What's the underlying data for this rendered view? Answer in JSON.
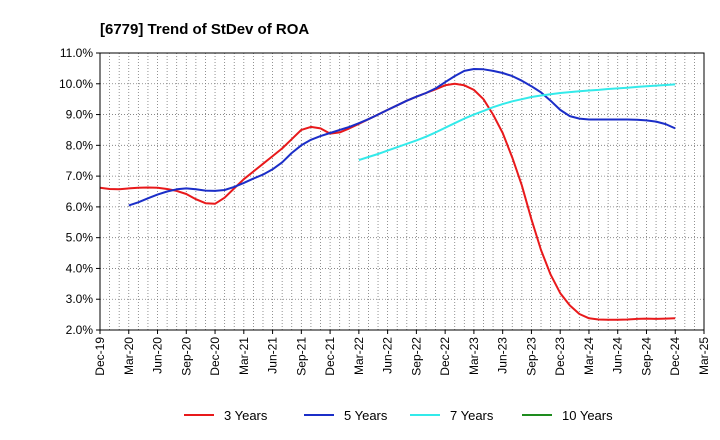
{
  "chart_data": {
    "type": "line",
    "title": "[6779]  Trend of StDev of ROA",
    "xlabel": "",
    "ylabel": "",
    "ylim": [
      2.0,
      11.0
    ],
    "y_ticks": [
      "2.0%",
      "3.0%",
      "4.0%",
      "5.0%",
      "6.0%",
      "7.0%",
      "8.0%",
      "9.0%",
      "10.0%",
      "11.0%"
    ],
    "x_ticks": [
      "Dec-19",
      "Mar-20",
      "Jun-20",
      "Sep-20",
      "Dec-20",
      "Mar-21",
      "Jun-21",
      "Sep-21",
      "Dec-21",
      "Mar-22",
      "Jun-22",
      "Sep-22",
      "Dec-22",
      "Mar-23",
      "Jun-23",
      "Sep-23",
      "Dec-23",
      "Mar-24",
      "Jun-24",
      "Sep-24",
      "Dec-24",
      "Mar-25"
    ],
    "grid": true,
    "legend": "bottom",
    "colors": {
      "3 Years": "#e8191b",
      "5 Years": "#1b2ec8",
      "7 Years": "#33eaea",
      "10 Years": "#1e8c1e"
    },
    "series": [
      {
        "name": "3 Years",
        "x": [
          "2019-12",
          "2020-01",
          "2020-02",
          "2020-03",
          "2020-04",
          "2020-05",
          "2020-06",
          "2020-07",
          "2020-08",
          "2020-09",
          "2020-10",
          "2020-11",
          "2020-12",
          "2021-01",
          "2021-02",
          "2021-03",
          "2021-04",
          "2021-05",
          "2021-06",
          "2021-07",
          "2021-08",
          "2021-09",
          "2021-10",
          "2021-11",
          "2021-12",
          "2022-01",
          "2022-02",
          "2022-03",
          "2022-04",
          "2022-05",
          "2022-06",
          "2022-07",
          "2022-08",
          "2022-09",
          "2022-10",
          "2022-11",
          "2022-12",
          "2023-01",
          "2023-02",
          "2023-03",
          "2023-04",
          "2023-05",
          "2023-06",
          "2023-07",
          "2023-08",
          "2023-09",
          "2023-10",
          "2023-11",
          "2023-12",
          "2024-01",
          "2024-02",
          "2024-03",
          "2024-04",
          "2024-05",
          "2024-06",
          "2024-07",
          "2024-08",
          "2024-09",
          "2024-10",
          "2024-11",
          "2024-12"
        ],
        "values": [
          6.62,
          6.58,
          6.57,
          6.6,
          6.62,
          6.63,
          6.62,
          6.58,
          6.52,
          6.42,
          6.25,
          6.12,
          6.1,
          6.3,
          6.6,
          6.9,
          7.15,
          7.4,
          7.65,
          7.9,
          8.2,
          8.5,
          8.6,
          8.55,
          8.38,
          8.42,
          8.55,
          8.7,
          8.85,
          9.0,
          9.15,
          9.3,
          9.45,
          9.58,
          9.7,
          9.82,
          9.95,
          10.0,
          9.95,
          9.8,
          9.5,
          9.0,
          8.4,
          7.6,
          6.7,
          5.6,
          4.6,
          3.8,
          3.2,
          2.8,
          2.52,
          2.38,
          2.34,
          2.33,
          2.33,
          2.34,
          2.36,
          2.37,
          2.36,
          2.37,
          2.38
        ]
      },
      {
        "name": "5 Years",
        "x": [
          "2020-03",
          "2020-04",
          "2020-05",
          "2020-06",
          "2020-07",
          "2020-08",
          "2020-09",
          "2020-10",
          "2020-11",
          "2020-12",
          "2021-01",
          "2021-02",
          "2021-03",
          "2021-04",
          "2021-05",
          "2021-06",
          "2021-07",
          "2021-08",
          "2021-09",
          "2021-10",
          "2021-11",
          "2021-12",
          "2022-01",
          "2022-02",
          "2022-03",
          "2022-04",
          "2022-05",
          "2022-06",
          "2022-07",
          "2022-08",
          "2022-09",
          "2022-10",
          "2022-11",
          "2022-12",
          "2023-01",
          "2023-02",
          "2023-03",
          "2023-04",
          "2023-05",
          "2023-06",
          "2023-07",
          "2023-08",
          "2023-09",
          "2023-10",
          "2023-11",
          "2023-12",
          "2024-01",
          "2024-02",
          "2024-03",
          "2024-04",
          "2024-05",
          "2024-06",
          "2024-07",
          "2024-08",
          "2024-09",
          "2024-10",
          "2024-11",
          "2024-12"
        ],
        "values": [
          6.05,
          6.15,
          6.28,
          6.4,
          6.5,
          6.57,
          6.6,
          6.57,
          6.53,
          6.52,
          6.55,
          6.65,
          6.78,
          6.92,
          7.05,
          7.22,
          7.45,
          7.75,
          8.0,
          8.18,
          8.3,
          8.4,
          8.5,
          8.6,
          8.72,
          8.85,
          9.0,
          9.15,
          9.3,
          9.45,
          9.58,
          9.7,
          9.85,
          10.05,
          10.25,
          10.42,
          10.48,
          10.47,
          10.42,
          10.35,
          10.25,
          10.1,
          9.92,
          9.72,
          9.45,
          9.15,
          8.95,
          8.87,
          8.84,
          8.84,
          8.84,
          8.84,
          8.84,
          8.83,
          8.81,
          8.77,
          8.69,
          8.55
        ]
      },
      {
        "name": "7 Years",
        "x": [
          "2022-03",
          "2022-04",
          "2022-05",
          "2022-06",
          "2022-07",
          "2022-08",
          "2022-09",
          "2022-10",
          "2022-11",
          "2022-12",
          "2023-01",
          "2023-02",
          "2023-03",
          "2023-04",
          "2023-05",
          "2023-06",
          "2023-07",
          "2023-08",
          "2023-09",
          "2023-10",
          "2023-11",
          "2023-12",
          "2024-01",
          "2024-02",
          "2024-03",
          "2024-04",
          "2024-05",
          "2024-06",
          "2024-07",
          "2024-08",
          "2024-09",
          "2024-10",
          "2024-11",
          "2024-12"
        ],
        "values": [
          7.52,
          7.62,
          7.72,
          7.83,
          7.94,
          8.05,
          8.16,
          8.28,
          8.42,
          8.57,
          8.72,
          8.87,
          9.0,
          9.12,
          9.24,
          9.34,
          9.43,
          9.5,
          9.57,
          9.62,
          9.66,
          9.7,
          9.73,
          9.76,
          9.78,
          9.8,
          9.83,
          9.85,
          9.87,
          9.9,
          9.92,
          9.94,
          9.96,
          9.98
        ]
      },
      {
        "name": "10 Years",
        "x": [],
        "values": []
      }
    ]
  }
}
